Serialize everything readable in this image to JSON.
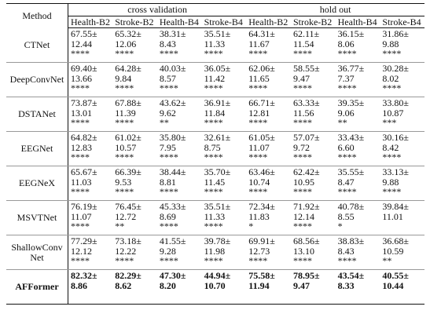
{
  "table": {
    "header": {
      "method": "Method",
      "groups": [
        "cross validation",
        "hold out"
      ],
      "columns": [
        "Health-B2",
        "Stroke-B2",
        "Health-B4",
        "Stroke-B4",
        "Health-B2",
        "Stroke-B2",
        "Health-B4",
        "Stroke-B4"
      ]
    },
    "rows": [
      {
        "method": "CTNet",
        "bold": false,
        "cells": [
          [
            "67.55±",
            "12.44",
            "****"
          ],
          [
            "65.32±",
            "12.06",
            "****"
          ],
          [
            "38.31±",
            "8.43",
            "****"
          ],
          [
            "35.51±",
            "11.33",
            "****"
          ],
          [
            "64.31±",
            "11.67",
            "****"
          ],
          [
            "62.11±",
            "11.54",
            "****"
          ],
          [
            "36.15±",
            "8.06",
            "****"
          ],
          [
            "31.86±",
            "9.88",
            "****"
          ]
        ]
      },
      {
        "method": "DeepConvNet",
        "bold": false,
        "cells": [
          [
            "69.40±",
            "13.66",
            "****"
          ],
          [
            "64.28±",
            "9.84",
            "****"
          ],
          [
            "40.03±",
            "8.57",
            "****"
          ],
          [
            "36.05±",
            "11.42",
            "****"
          ],
          [
            "62.06±",
            "11.65",
            "****"
          ],
          [
            "58.55±",
            "9.47",
            "****"
          ],
          [
            "36.77±",
            "7.37",
            "****"
          ],
          [
            "30.28±",
            "8.02",
            "****"
          ]
        ]
      },
      {
        "method": "DSTANet",
        "bold": false,
        "cells": [
          [
            "73.87±",
            "13.01",
            "****"
          ],
          [
            "67.88±",
            "11.39",
            "****"
          ],
          [
            "43.62±",
            "9.62",
            "**"
          ],
          [
            "36.91±",
            "11.84",
            "****"
          ],
          [
            "66.71±",
            "12.81",
            "****"
          ],
          [
            "63.33±",
            "11.56",
            "****"
          ],
          [
            "39.35±",
            "9.06",
            "**"
          ],
          [
            "33.80±",
            "10.87",
            "***"
          ]
        ]
      },
      {
        "method": "EEGNet",
        "bold": false,
        "cells": [
          [
            "64.82±",
            "12.83",
            "****"
          ],
          [
            "61.02±",
            "10.57",
            "****"
          ],
          [
            "35.80±",
            "7.95",
            "****"
          ],
          [
            "32.61±",
            "8.75",
            "****"
          ],
          [
            "61.05±",
            "11.07",
            "****"
          ],
          [
            "57.07±",
            "9.72",
            "****"
          ],
          [
            "33.43±",
            "6.60",
            "****"
          ],
          [
            "30.16±",
            "8.42",
            "****"
          ]
        ]
      },
      {
        "method": "EEGNeX",
        "bold": false,
        "cells": [
          [
            "65.67±",
            "11.03",
            "****"
          ],
          [
            "66.39±",
            "9.53",
            "****"
          ],
          [
            "38.44±",
            "8.81",
            "****"
          ],
          [
            "35.70±",
            "11.45",
            "****"
          ],
          [
            "63.46±",
            "10.74",
            "****"
          ],
          [
            "62.42±",
            "10.95",
            "****"
          ],
          [
            "35.55±",
            "8.47",
            "****"
          ],
          [
            "33.13±",
            "9.88",
            "****"
          ]
        ]
      },
      {
        "method": "MSVTNet",
        "bold": false,
        "cells": [
          [
            "76.19±",
            "11.07",
            "****"
          ],
          [
            "76.45±",
            "12.72",
            "**"
          ],
          [
            "45.33±",
            "8.69",
            "****"
          ],
          [
            "35.51±",
            "11.33",
            "****"
          ],
          [
            "72.34±",
            "11.83",
            "*"
          ],
          [
            "71.92±",
            "12.14",
            "****"
          ],
          [
            "40.78±",
            "8.55",
            "*"
          ],
          [
            "39.84±",
            "11.01"
          ]
        ]
      },
      {
        "method": "ShallowConvNet",
        "bold": false,
        "cells": [
          [
            "77.29±",
            "12.12",
            "****"
          ],
          [
            "73.18±",
            "12.22",
            "****"
          ],
          [
            "41.55±",
            "9.28",
            "****"
          ],
          [
            "39.78±",
            "11.98",
            "****"
          ],
          [
            "69.91±",
            "12.73",
            "****"
          ],
          [
            "68.56±",
            "13.10",
            "****"
          ],
          [
            "38.83±",
            "8.43",
            "****"
          ],
          [
            "36.68±",
            "10.59",
            "**"
          ]
        ]
      },
      {
        "method": "AFFormer",
        "bold": true,
        "cells": [
          [
            "82.32±",
            "8.86"
          ],
          [
            "82.29±",
            "8.62"
          ],
          [
            "47.30±",
            "8.20"
          ],
          [
            "44.94±",
            "10.70"
          ],
          [
            "75.58±",
            "11.94"
          ],
          [
            "78.95±",
            "9.47"
          ],
          [
            "43.54±",
            "8.33"
          ],
          [
            "40.55±",
            "10.44"
          ]
        ]
      }
    ]
  }
}
